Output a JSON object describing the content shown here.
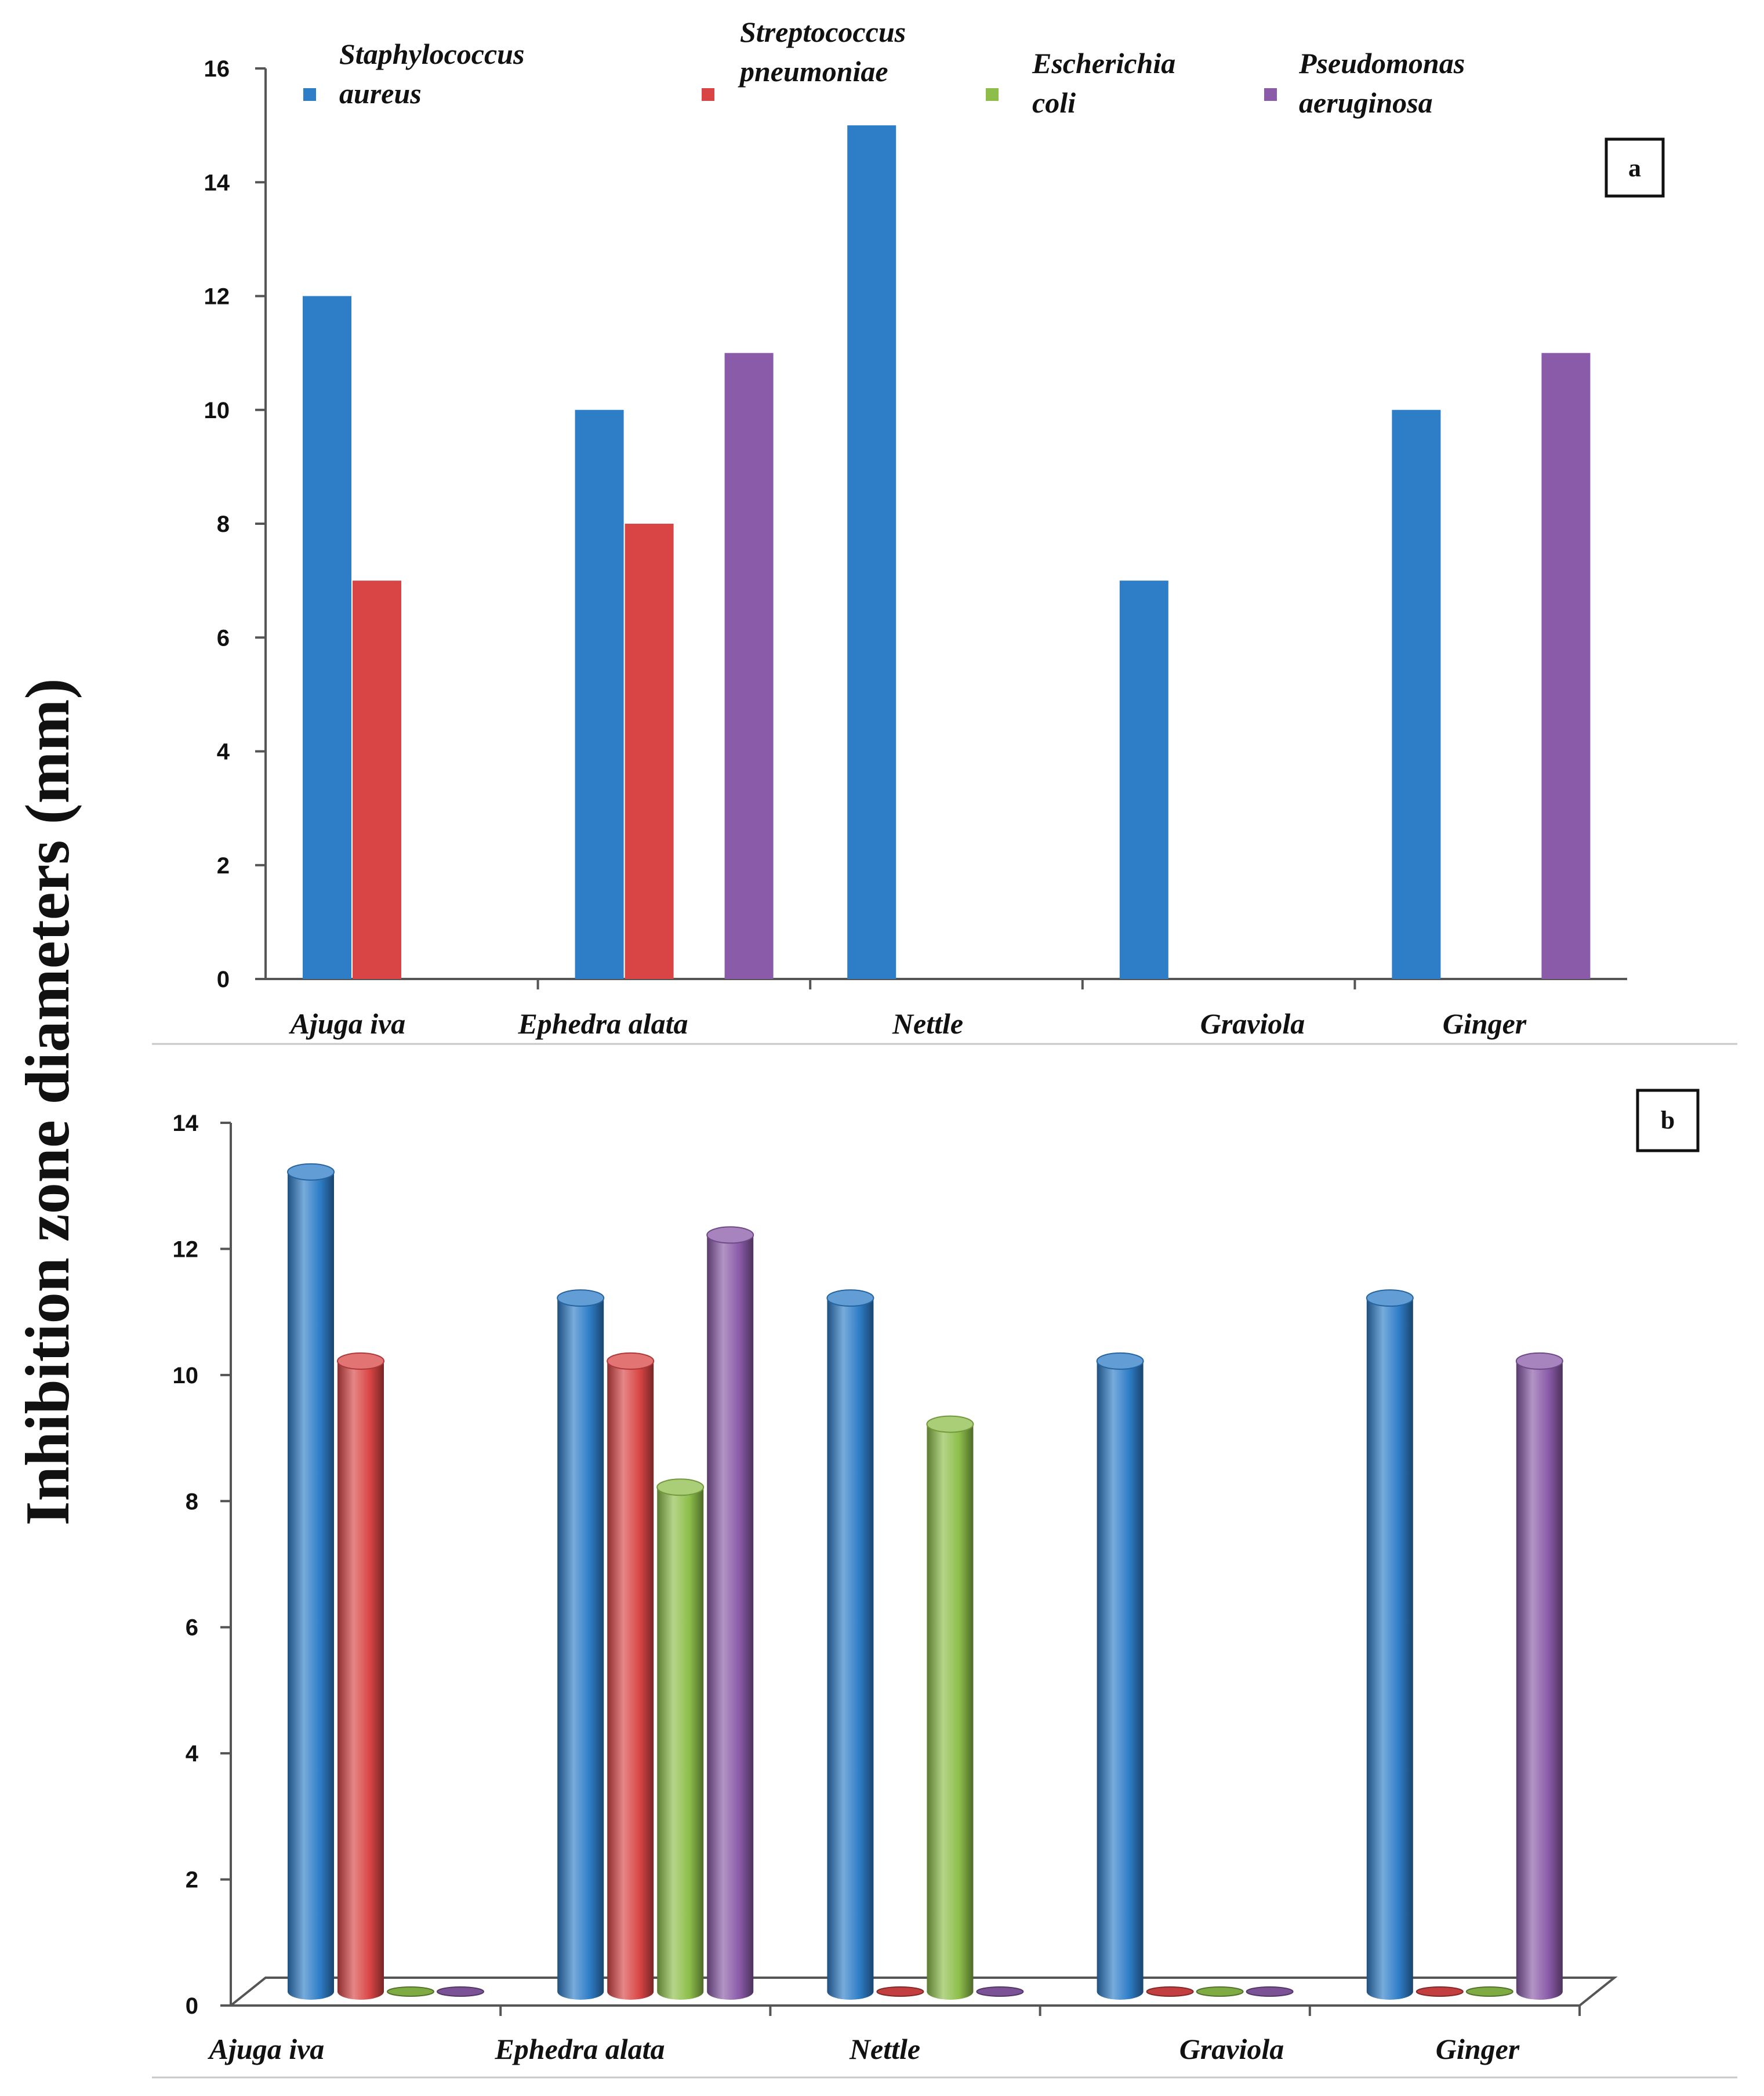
{
  "chart_data": [
    {
      "type": "bar",
      "panel": "a",
      "style": "2d",
      "categories": [
        "Ajuga iva",
        "Ephedra alata",
        "Nettle",
        "Graviola",
        "Ginger"
      ],
      "series": [
        {
          "name": "Staphylococcus aureus",
          "legend_lines": [
            "Staphylococcus",
            "aureus"
          ],
          "color": "#2E7DC7",
          "values": [
            12,
            10,
            15,
            7,
            10
          ]
        },
        {
          "name": "Streptococcus pneumoniae",
          "legend_lines": [
            "Streptococcus",
            "pneumoniae"
          ],
          "color": "#D94545",
          "values": [
            7,
            8,
            0,
            0,
            0
          ]
        },
        {
          "name": "Escherichia coli",
          "legend_lines": [
            "Escherichia",
            "coli"
          ],
          "color": "#8DBE4A",
          "values": [
            0,
            0,
            0,
            0,
            0
          ]
        },
        {
          "name": "Pseudomonas aeruginosa",
          "legend_lines": [
            "Pseudomonas",
            "aeruginosa"
          ],
          "color": "#8A5BA8",
          "values": [
            0,
            11,
            0,
            0,
            11
          ]
        }
      ],
      "ylim": [
        0,
        16
      ],
      "yticks": [
        "0",
        "2",
        "4",
        "6",
        "8",
        "10",
        "12",
        "14",
        "16"
      ],
      "ylabel": "Inhibition zone diameters (mm)",
      "xlabel": "",
      "grid": false,
      "legend": "top"
    },
    {
      "type": "bar",
      "panel": "b",
      "style": "3d-cylinder",
      "categories": [
        "Ajuga iva",
        "Ephedra alata",
        "Nettle",
        "Graviola",
        "Ginger"
      ],
      "series": [
        {
          "name": "Staphylococcus aureus",
          "color": "#2E7DC7",
          "values": [
            13,
            11,
            11,
            10,
            11
          ]
        },
        {
          "name": "Streptococcus pneumoniae",
          "color": "#D94545",
          "values": [
            10,
            10,
            0,
            0,
            0
          ]
        },
        {
          "name": "Escherichia coli",
          "color": "#8DBE4A",
          "values": [
            0,
            8,
            9,
            0,
            0
          ]
        },
        {
          "name": "Pseudomonas aeruginosa",
          "color": "#8A5BA8",
          "values": [
            0,
            12,
            0,
            0,
            10
          ]
        }
      ],
      "ylim": [
        0,
        14
      ],
      "yticks": [
        "0",
        "2",
        "4",
        "6",
        "8",
        "10",
        "12",
        "14"
      ],
      "ylabel": "Inhibition zone diameters (mm)",
      "xlabel": "",
      "grid": false,
      "legend": "none"
    }
  ]
}
